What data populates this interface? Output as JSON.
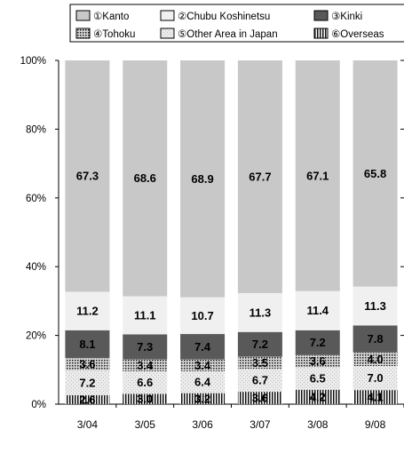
{
  "chart_data": {
    "type": "bar",
    "stacked": true,
    "title": "",
    "xlabel": "",
    "ylabel": "",
    "ylim": [
      0,
      100
    ],
    "y_ticks": [
      "0%",
      "20%",
      "40%",
      "60%",
      "80%",
      "100%"
    ],
    "y_tick_values": [
      0,
      20,
      40,
      60,
      80,
      100
    ],
    "grid": false,
    "legend_position": "top",
    "categories": [
      "3/04",
      "3/05",
      "3/06",
      "3/07",
      "3/08",
      "9/08"
    ],
    "series": [
      {
        "name": "⑥Overseas",
        "pattern": "vertical-lines",
        "color": "#555555",
        "values": [
          2.6,
          3.0,
          3.2,
          3.6,
          4.2,
          4.1
        ]
      },
      {
        "name": "⑤Other Area in Japan",
        "pattern": "light",
        "color": "#e6e6e6",
        "values": [
          7.2,
          6.6,
          6.4,
          6.7,
          6.5,
          7.0
        ]
      },
      {
        "name": "④Tohoku",
        "pattern": "dots",
        "color": "#8c8c8c",
        "values": [
          3.6,
          3.4,
          3.4,
          3.5,
          3.6,
          4.0
        ]
      },
      {
        "name": "③Kinki",
        "pattern": "solid",
        "color": "#595959",
        "values": [
          8.1,
          7.3,
          7.4,
          7.2,
          7.2,
          7.8
        ]
      },
      {
        "name": "②Chubu Koshinetsu",
        "pattern": "solid",
        "color": "#f0f0f0",
        "values": [
          11.2,
          11.1,
          10.7,
          11.3,
          11.4,
          11.3
        ]
      },
      {
        "name": "①Kanto",
        "pattern": "solid",
        "color": "#c8c8c8",
        "values": [
          67.3,
          68.6,
          68.9,
          67.7,
          67.1,
          65.8
        ]
      }
    ],
    "legend_order": [
      5,
      4,
      3,
      2,
      1,
      0
    ]
  }
}
